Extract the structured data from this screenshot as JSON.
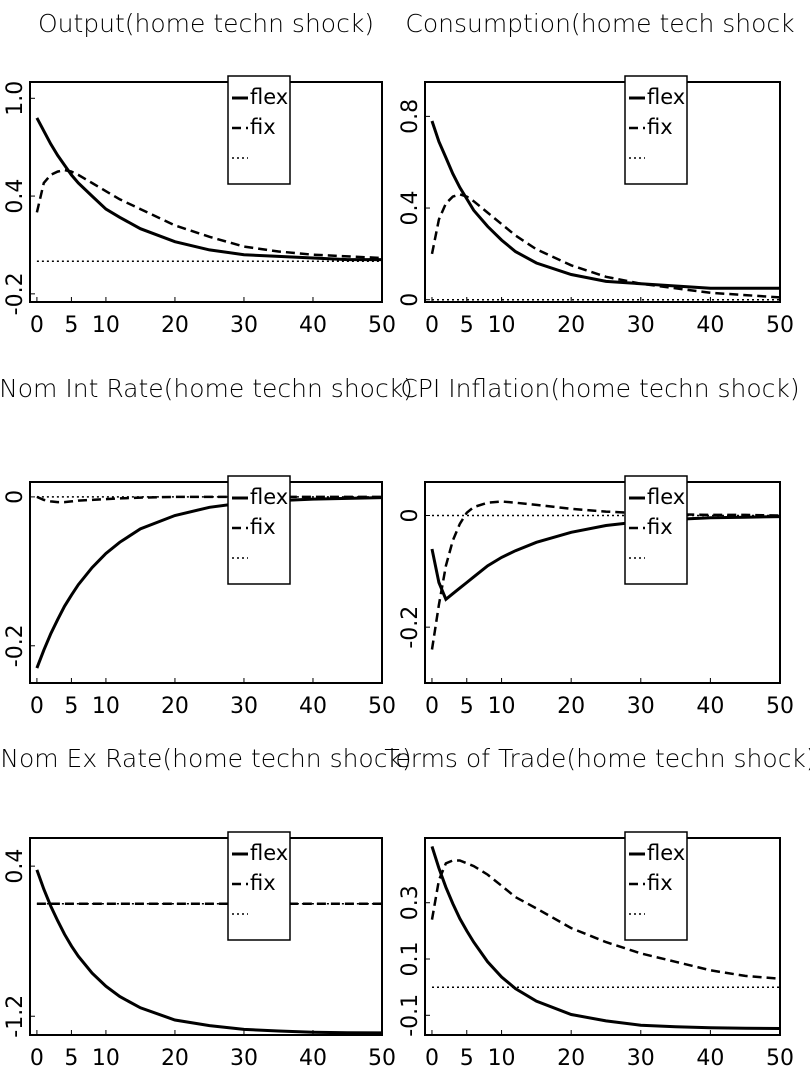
{
  "chart_data": [
    {
      "type": "line",
      "title": "Output(home techn shock)",
      "x": [
        0,
        1,
        2,
        3,
        4,
        5,
        6,
        8,
        10,
        12,
        15,
        20,
        25,
        30,
        35,
        40,
        45,
        50
      ],
      "xlim": [
        -1,
        50
      ],
      "xticks": [
        0,
        5,
        10,
        20,
        30,
        40,
        50
      ],
      "ylim": [
        -0.25,
        1.1
      ],
      "yticks": [
        -0.2,
        0.4,
        {
          "value": 1,
          "label": "1.0"
        }
      ],
      "series": [
        {
          "name": "flex",
          "color": "#000000",
          "style": "solid",
          "values": [
            0.88,
            0.8,
            0.72,
            0.65,
            0.59,
            0.53,
            0.48,
            0.4,
            0.32,
            0.27,
            0.2,
            0.12,
            0.07,
            0.04,
            0.03,
            0.02,
            0.01,
            0.01
          ]
        },
        {
          "name": "fix",
          "color": "#000000",
          "style": "dashed",
          "values": [
            0.3,
            0.48,
            0.53,
            0.55,
            0.56,
            0.55,
            0.53,
            0.48,
            0.43,
            0.38,
            0.32,
            0.22,
            0.15,
            0.09,
            0.06,
            0.04,
            0.03,
            0.02
          ]
        },
        {
          "color": "#000000",
          "style": "dotted",
          "values": [
            0,
            0,
            0,
            0,
            0,
            0,
            0,
            0,
            0,
            0,
            0,
            0,
            0,
            0,
            0,
            0,
            0,
            0
          ]
        }
      ]
    },
    {
      "type": "line",
      "title": "Consumption(home tech shock",
      "x": [
        0,
        1,
        2,
        3,
        4,
        5,
        6,
        8,
        10,
        12,
        15,
        20,
        25,
        30,
        35,
        40,
        45,
        50
      ],
      "xlim": [
        -1,
        50
      ],
      "xticks": [
        0,
        5,
        10,
        20,
        30,
        40,
        50
      ],
      "ylim": [
        -0.01,
        0.95
      ],
      "yticks": [
        0,
        0.4,
        0.8
      ],
      "series": [
        {
          "name": "flex",
          "color": "#000000",
          "style": "solid",
          "values": [
            0.78,
            0.69,
            0.62,
            0.55,
            0.49,
            0.44,
            0.39,
            0.32,
            0.26,
            0.21,
            0.16,
            0.11,
            0.08,
            0.07,
            0.06,
            0.05,
            0.05,
            0.05
          ]
        },
        {
          "name": "fix",
          "color": "#000000",
          "style": "dashed",
          "values": [
            0.2,
            0.35,
            0.42,
            0.45,
            0.46,
            0.45,
            0.43,
            0.38,
            0.33,
            0.28,
            0.22,
            0.15,
            0.1,
            0.07,
            0.05,
            0.03,
            0.02,
            0.01
          ]
        },
        {
          "color": "#000000",
          "style": "dotted",
          "values": [
            0,
            0,
            0,
            0,
            0,
            0,
            0,
            0,
            0,
            0,
            0,
            0,
            0,
            0,
            0,
            0,
            0,
            0
          ]
        }
      ]
    },
    {
      "type": "line",
      "title": "Nom Int Rate(home techn shock)",
      "x": [
        0,
        1,
        2,
        3,
        4,
        5,
        6,
        8,
        10,
        12,
        15,
        20,
        25,
        30,
        35,
        40,
        45,
        50
      ],
      "xlim": [
        -1,
        50
      ],
      "xticks": [
        0,
        5,
        10,
        20,
        30,
        40,
        50
      ],
      "ylim": [
        -0.25,
        0.02
      ],
      "yticks": [
        -0.2,
        0
      ],
      "series": [
        {
          "name": "flex",
          "color": "#000000",
          "style": "solid",
          "values": [
            -0.23,
            -0.206,
            -0.184,
            -0.165,
            -0.147,
            -0.132,
            -0.118,
            -0.095,
            -0.076,
            -0.061,
            -0.043,
            -0.025,
            -0.014,
            -0.008,
            -0.005,
            -0.003,
            -0.002,
            -0.001
          ]
        },
        {
          "name": "fix",
          "color": "#000000",
          "style": "dashed",
          "values": [
            0,
            -0.004,
            -0.006,
            -0.007,
            -0.007,
            -0.006,
            -0.005,
            -0.004,
            -0.003,
            -0.002,
            -0.001,
            0,
            0,
            0,
            0,
            0,
            0,
            0
          ]
        },
        {
          "color": "#000000",
          "style": "dotted",
          "values": [
            0,
            0,
            0,
            0,
            0,
            0,
            0,
            0,
            0,
            0,
            0,
            0,
            0,
            0,
            0,
            0,
            0,
            0
          ]
        }
      ]
    },
    {
      "type": "line",
      "title": "CPI Inflation(home techn shock)",
      "x": [
        0,
        1,
        2,
        3,
        4,
        5,
        6,
        8,
        10,
        12,
        15,
        20,
        25,
        30,
        35,
        40,
        45,
        50
      ],
      "xlim": [
        -1,
        50
      ],
      "xticks": [
        0,
        5,
        10,
        20,
        30,
        40,
        50
      ],
      "ylim": [
        -0.3,
        0.06
      ],
      "yticks": [
        -0.2,
        0
      ],
      "series": [
        {
          "name": "flex",
          "color": "#000000",
          "style": "solid",
          "values": [
            -0.06,
            -0.12,
            -0.15,
            -0.14,
            -0.13,
            -0.12,
            -0.11,
            -0.09,
            -0.075,
            -0.063,
            -0.048,
            -0.03,
            -0.018,
            -0.011,
            -0.007,
            -0.004,
            -0.003,
            -0.002
          ]
        },
        {
          "name": "fix",
          "color": "#000000",
          "style": "dashed",
          "values": [
            -0.24,
            -0.16,
            -0.09,
            -0.045,
            -0.015,
            0.005,
            0.015,
            0.023,
            0.025,
            0.023,
            0.019,
            0.012,
            0.007,
            0.004,
            0.002,
            0.001,
            0.001,
            0
          ]
        },
        {
          "color": "#000000",
          "style": "dotted",
          "values": [
            0,
            0,
            0,
            0,
            0,
            0,
            0,
            0,
            0,
            0,
            0,
            0,
            0,
            0,
            0,
            0,
            0,
            0
          ]
        }
      ]
    },
    {
      "type": "line",
      "title": "Nom Ex Rate(home techn shock)",
      "x": [
        0,
        1,
        2,
        3,
        4,
        5,
        6,
        8,
        10,
        12,
        15,
        20,
        25,
        30,
        35,
        40,
        45,
        50
      ],
      "xlim": [
        -1,
        50
      ],
      "xticks": [
        0,
        5,
        10,
        20,
        30,
        40,
        50
      ],
      "ylim": [
        -1.4,
        0.7
      ],
      "yticks": [
        -1.2,
        0.4
      ],
      "series": [
        {
          "name": "flex",
          "color": "#000000",
          "style": "solid",
          "values": [
            0.36,
            0.155,
            -0.025,
            -0.18,
            -0.325,
            -0.45,
            -0.56,
            -0.74,
            -0.88,
            -0.99,
            -1.11,
            -1.24,
            -1.3,
            -1.34,
            -1.357,
            -1.37,
            -1.375,
            -1.378
          ]
        },
        {
          "name": "fix",
          "color": "#000000",
          "style": "dashed",
          "values": [
            0,
            0,
            0,
            0,
            0,
            0,
            0,
            0,
            0,
            0,
            0,
            0,
            0,
            0,
            0,
            0,
            0,
            0
          ]
        },
        {
          "color": "#000000",
          "style": "dotted",
          "values": [
            0,
            0,
            0,
            0,
            0,
            0,
            0,
            0,
            0,
            0,
            0,
            0,
            0,
            0,
            0,
            0,
            0,
            0
          ]
        }
      ]
    },
    {
      "type": "line",
      "title": "Terms of Trade(home techn shock)",
      "x": [
        0,
        1,
        2,
        3,
        4,
        5,
        6,
        8,
        10,
        12,
        15,
        20,
        25,
        30,
        35,
        40,
        45,
        50
      ],
      "xlim": [
        -1,
        50
      ],
      "xticks": [
        0,
        5,
        10,
        20,
        30,
        40,
        50
      ],
      "ylim": [
        -0.17,
        0.53
      ],
      "yticks": [
        -0.1,
        0.1,
        0.3
      ],
      "series": [
        {
          "name": "flex",
          "color": "#000000",
          "style": "solid",
          "values": [
            0.5,
            0.423,
            0.355,
            0.297,
            0.244,
            0.2,
            0.16,
            0.09,
            0.036,
            -0.005,
            -0.05,
            -0.097,
            -0.12,
            -0.135,
            -0.141,
            -0.144,
            -0.146,
            -0.147
          ]
        },
        {
          "name": "fix",
          "color": "#000000",
          "style": "dashed",
          "values": [
            0.24,
            0.38,
            0.44,
            0.45,
            0.45,
            0.44,
            0.43,
            0.4,
            0.36,
            0.32,
            0.28,
            0.21,
            0.16,
            0.12,
            0.09,
            0.06,
            0.04,
            0.03
          ]
        },
        {
          "color": "#000000",
          "style": "dotted",
          "values": [
            0,
            0,
            0,
            0,
            0,
            0,
            0,
            0,
            0,
            0,
            0,
            0,
            0,
            0,
            0,
            0,
            0,
            0
          ]
        }
      ]
    }
  ]
}
